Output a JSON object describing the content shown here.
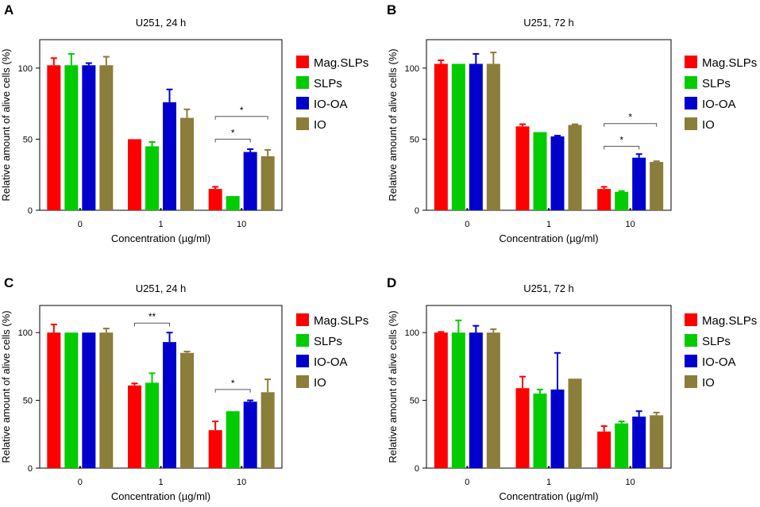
{
  "chart_data": [
    {
      "type": "bar",
      "panel_letter": "A",
      "title": "U251, 24 h",
      "xlabel": "Concentration (µg/ml)",
      "ylabel": "Relative amount of alive cells (%)",
      "categories": [
        "0",
        "1",
        "10"
      ],
      "yticks": [
        "0",
        "50",
        "100"
      ],
      "ylim": [
        0,
        120
      ],
      "legend_position": "right",
      "series": [
        {
          "name": "Mag.SLPs",
          "color": "#ff0000",
          "values": [
            102,
            50,
            15
          ],
          "errors": [
            5,
            0,
            1.5
          ]
        },
        {
          "name": "SLPs",
          "color": "#00cc00",
          "values": [
            102,
            45,
            10
          ],
          "errors": [
            8,
            3,
            0
          ]
        },
        {
          "name": "IO-OA",
          "color": "#0000cc",
          "values": [
            102,
            76,
            41
          ],
          "errors": [
            1.5,
            9,
            2
          ]
        },
        {
          "name": "IO",
          "color": "#8b7d3a",
          "values": [
            102,
            65,
            38
          ],
          "errors": [
            6,
            6,
            4.5
          ]
        }
      ],
      "annotations": [
        {
          "label": "*",
          "category": 2,
          "from_series": 0,
          "to_series": 3,
          "y": 66
        },
        {
          "label": "*",
          "category": 2,
          "from_series": 0,
          "to_series": 2,
          "y": 50
        }
      ]
    },
    {
      "type": "bar",
      "panel_letter": "B",
      "title": "U251, 72 h",
      "xlabel": "Concentration (µg/ml)",
      "ylabel": "Relative amount of alive cells (%)",
      "categories": [
        "0",
        "1",
        "10"
      ],
      "yticks": [
        "0",
        "50",
        "100"
      ],
      "ylim": [
        0,
        120
      ],
      "legend_position": "right",
      "series": [
        {
          "name": "Mag.SLPs",
          "color": "#ff0000",
          "values": [
            103,
            59,
            15
          ],
          "errors": [
            2.5,
            1.5,
            1.5
          ]
        },
        {
          "name": "SLPs",
          "color": "#00cc00",
          "values": [
            103,
            55,
            13
          ],
          "errors": [
            0,
            0,
            0.5
          ]
        },
        {
          "name": "IO-OA",
          "color": "#0000cc",
          "values": [
            103,
            52,
            37
          ],
          "errors": [
            7,
            0.5,
            2.5
          ]
        },
        {
          "name": "IO",
          "color": "#8b7d3a",
          "values": [
            103,
            60,
            34
          ],
          "errors": [
            8,
            0.5,
            0.5
          ]
        }
      ],
      "annotations": [
        {
          "label": "*",
          "category": 2,
          "from_series": 0,
          "to_series": 3,
          "y": 61
        },
        {
          "label": "*",
          "category": 2,
          "from_series": 0,
          "to_series": 2,
          "y": 45
        }
      ]
    },
    {
      "type": "bar",
      "panel_letter": "C",
      "title": "U251, 24 h",
      "xlabel": "Concentration (µg/ml)",
      "ylabel": "Relative amount of alive cells (%)",
      "categories": [
        "0",
        "1",
        "10"
      ],
      "yticks": [
        "0",
        "50",
        "100"
      ],
      "ylim": [
        0,
        120
      ],
      "legend_position": "right",
      "series": [
        {
          "name": "Mag.SLPs",
          "color": "#ff0000",
          "values": [
            100,
            61,
            28
          ],
          "errors": [
            6,
            1.5,
            6.5
          ]
        },
        {
          "name": "SLPs",
          "color": "#00cc00",
          "values": [
            100,
            63,
            42
          ],
          "errors": [
            0,
            7,
            0
          ]
        },
        {
          "name": "IO-OA",
          "color": "#0000cc",
          "values": [
            100,
            93,
            49
          ],
          "errors": [
            0,
            7,
            1
          ]
        },
        {
          "name": "IO",
          "color": "#8b7d3a",
          "values": [
            100,
            85,
            56
          ],
          "errors": [
            3,
            1,
            9.5
          ]
        }
      ],
      "annotations": [
        {
          "label": "**",
          "category": 1,
          "from_series": 0,
          "to_series": 2,
          "y": 107
        },
        {
          "label": "*",
          "category": 2,
          "from_series": 0,
          "to_series": 2,
          "y": 58
        }
      ]
    },
    {
      "type": "bar",
      "panel_letter": "D",
      "title": "U251, 72 h",
      "xlabel": "Concentration (µg/ml)",
      "ylabel": "Relative amount of alive cells (%)",
      "categories": [
        "0",
        "1",
        "10"
      ],
      "yticks": [
        "0",
        "50",
        "100"
      ],
      "ylim": [
        0,
        120
      ],
      "legend_position": "right",
      "series": [
        {
          "name": "Mag.SLPs",
          "color": "#ff0000",
          "values": [
            100,
            59,
            27
          ],
          "errors": [
            0.5,
            8.5,
            4
          ]
        },
        {
          "name": "SLPs",
          "color": "#00cc00",
          "values": [
            100,
            55,
            33
          ],
          "errors": [
            9,
            3,
            1.5
          ]
        },
        {
          "name": "IO-OA",
          "color": "#0000cc",
          "values": [
            100,
            58,
            38
          ],
          "errors": [
            5,
            27,
            4
          ]
        },
        {
          "name": "IO",
          "color": "#8b7d3a",
          "values": [
            100,
            66,
            39
          ],
          "errors": [
            2.5,
            0,
            2
          ]
        }
      ],
      "annotations": []
    }
  ]
}
